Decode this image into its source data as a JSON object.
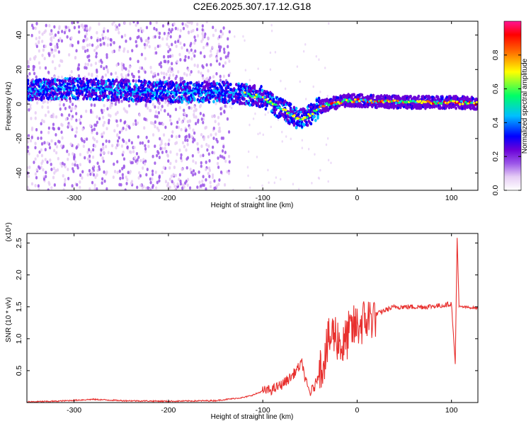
{
  "title": "C2E6.2025.307.17.12.G18",
  "chart_data": [
    {
      "type": "heatmap",
      "xlabel": "Height of straight line (km)",
      "ylabel": "Frequency (Hz)",
      "xlim": [
        -350,
        128
      ],
      "ylim": [
        -50,
        48
      ],
      "x_ticks": [
        -300,
        -200,
        -100,
        0,
        100
      ],
      "x_tick_labels": [
        "-300",
        "-200",
        "-100",
        "0",
        "100"
      ],
      "y_ticks": [
        -40,
        -20,
        0,
        20,
        40
      ],
      "y_tick_labels": [
        "-40",
        "-20",
        "0",
        "20",
        "40"
      ],
      "colorbar": {
        "label": "Normalized spectral amplitude",
        "range": [
          0.0,
          1.0
        ],
        "ticks": [
          0.0,
          0.2,
          0.4,
          0.6,
          0.8
        ],
        "tick_labels": [
          "0.0",
          "0.2",
          "0.4",
          "0.6",
          "0.8"
        ],
        "colormap": [
          "#ffffff",
          "#e6cdf5",
          "#9b55e8",
          "#6a00d8",
          "#0000ff",
          "#00bfff",
          "#00ff66",
          "#ffff00",
          "#ff6a00",
          "#ff0000",
          "#ff1493"
        ]
      },
      "ridge": {
        "x": [
          -350,
          -300,
          -250,
          -200,
          -150,
          -120,
          -100,
          -90,
          -80,
          -70,
          -60,
          -55,
          -50,
          -45,
          -40,
          -30,
          -20,
          -10,
          0,
          20,
          50,
          80,
          100,
          128
        ],
        "y": [
          8,
          9,
          8,
          7,
          7,
          6,
          4,
          0,
          -3,
          -6,
          -9,
          -8,
          -6,
          -4,
          -2,
          0,
          1,
          2,
          2,
          1.5,
          1,
          1,
          1,
          0.5
        ]
      },
      "grid": false,
      "colors": {
        "frame": "#000000"
      }
    },
    {
      "type": "line",
      "xlabel": "Height of straight line (km)",
      "ylabel": "SNR (10 * v/v)",
      "multiplier": "(x10⁴)",
      "xlim": [
        -350,
        128
      ],
      "ylim": [
        0,
        2.65
      ],
      "x_ticks": [
        -300,
        -200,
        -100,
        0,
        100
      ],
      "x_tick_labels": [
        "-300",
        "-200",
        "-100",
        "0",
        "100"
      ],
      "y_ticks": [
        0.5,
        1.0,
        1.5,
        2.0,
        2.5
      ],
      "y_tick_labels": [
        "0.5",
        "1.0",
        "1.5",
        "2.0",
        "2.5"
      ],
      "series": [
        {
          "color": "#e8302e",
          "x": [
            -350,
            -320,
            -280,
            -250,
            -200,
            -150,
            -120,
            -110,
            -100,
            -90,
            -80,
            -70,
            -62,
            -58,
            -55,
            -50,
            -45,
            -40,
            -35,
            -30,
            -25,
            -20,
            -15,
            -10,
            -5,
            0,
            10,
            20,
            30,
            40,
            55,
            70,
            90,
            100,
            104,
            106,
            108,
            110,
            128
          ],
          "y": [
            0.01,
            0.02,
            0.05,
            0.03,
            0.02,
            0.03,
            0.08,
            0.12,
            0.18,
            0.2,
            0.28,
            0.4,
            0.55,
            0.62,
            0.35,
            0.15,
            0.25,
            0.5,
            0.7,
            0.95,
            1.1,
            1.0,
            0.85,
            1.05,
            1.15,
            1.2,
            1.3,
            1.38,
            1.45,
            1.5,
            1.5,
            1.5,
            1.52,
            1.55,
            0.6,
            2.6,
            1.5,
            1.5,
            1.48
          ]
        }
      ],
      "grid": false
    }
  ]
}
